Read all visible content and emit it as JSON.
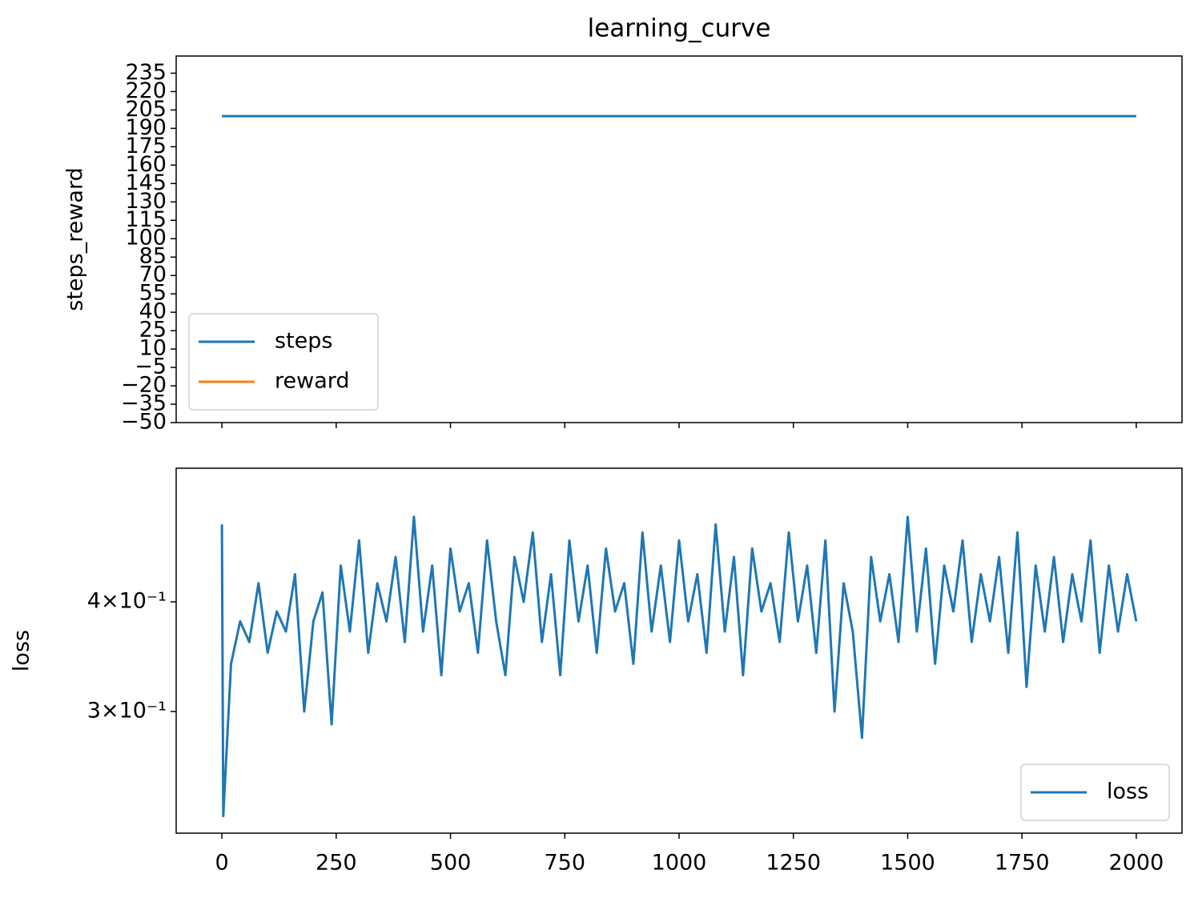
{
  "chart_data": [
    {
      "type": "line",
      "title": "learning_curve",
      "y_label": "steps_reward",
      "x": [
        0,
        2000
      ],
      "series": [
        {
          "name": "steps",
          "color": "#1f77b4",
          "values": [
            200,
            200
          ]
        },
        {
          "name": "reward",
          "color": "#ff7f0e",
          "values": [
            null,
            null
          ]
        }
      ],
      "xlim": [
        -100,
        2100
      ],
      "ylim": [
        -50,
        249
      ],
      "yticks": [
        {
          "value": -50,
          "label": "−50"
        },
        {
          "value": -35,
          "label": "−35"
        },
        {
          "value": -20,
          "label": "−20"
        },
        {
          "value": -5,
          "label": "−5"
        },
        10,
        25,
        40,
        55,
        70,
        85,
        100,
        115,
        130,
        145,
        160,
        175,
        190,
        205,
        220,
        235
      ],
      "legend": "lower left"
    },
    {
      "type": "line",
      "y_label": "loss",
      "yscale": "log",
      "x": [
        0,
        3,
        20,
        40,
        60,
        80,
        100,
        120,
        140,
        160,
        180,
        200,
        220,
        240,
        260,
        280,
        300,
        320,
        340,
        360,
        380,
        400,
        420,
        440,
        460,
        480,
        500,
        520,
        540,
        560,
        580,
        600,
        620,
        640,
        660,
        680,
        700,
        720,
        740,
        760,
        780,
        800,
        820,
        840,
        860,
        880,
        900,
        920,
        940,
        960,
        980,
        1000,
        1020,
        1040,
        1060,
        1080,
        1100,
        1120,
        1140,
        1160,
        1180,
        1200,
        1220,
        1240,
        1260,
        1280,
        1300,
        1320,
        1340,
        1360,
        1380,
        1400,
        1420,
        1440,
        1460,
        1480,
        1500,
        1520,
        1540,
        1560,
        1580,
        1600,
        1620,
        1640,
        1660,
        1680,
        1700,
        1720,
        1740,
        1760,
        1780,
        1800,
        1820,
        1840,
        1860,
        1880,
        1900,
        1920,
        1940,
        1960,
        1980,
        2000
      ],
      "series": [
        {
          "name": "loss",
          "color": "#1f77b4",
          "values": [
            0.49,
            0.228,
            0.34,
            0.38,
            0.36,
            0.42,
            0.35,
            0.39,
            0.37,
            0.43,
            0.3,
            0.38,
            0.41,
            0.29,
            0.44,
            0.37,
            0.47,
            0.35,
            0.42,
            0.38,
            0.45,
            0.36,
            0.5,
            0.37,
            0.44,
            0.33,
            0.46,
            0.39,
            0.42,
            0.35,
            0.47,
            0.38,
            0.33,
            0.45,
            0.4,
            0.48,
            0.36,
            0.43,
            0.33,
            0.47,
            0.38,
            0.44,
            0.35,
            0.46,
            0.39,
            0.42,
            0.34,
            0.48,
            0.37,
            0.44,
            0.36,
            0.47,
            0.38,
            0.43,
            0.35,
            0.49,
            0.37,
            0.45,
            0.33,
            0.46,
            0.39,
            0.42,
            0.36,
            0.48,
            0.38,
            0.44,
            0.35,
            0.47,
            0.3,
            0.42,
            0.37,
            0.28,
            0.45,
            0.38,
            0.43,
            0.36,
            0.5,
            0.37,
            0.46,
            0.34,
            0.44,
            0.39,
            0.47,
            0.36,
            0.43,
            0.38,
            0.45,
            0.35,
            0.48,
            0.32,
            0.44,
            0.37,
            0.45,
            0.36,
            0.43,
            0.38,
            0.47,
            0.35,
            0.44,
            0.37,
            0.43,
            0.38
          ]
        }
      ],
      "xlim": [
        -100,
        2100
      ],
      "ylim": [
        0.218,
        0.568
      ],
      "xticks": [
        0,
        250,
        500,
        750,
        1000,
        1250,
        1500,
        1750,
        2000
      ],
      "yticks": [
        {
          "value": 0.3,
          "label": "3×10⁻¹"
        },
        {
          "value": 0.4,
          "label": "4×10⁻¹"
        }
      ],
      "legend": "lower right"
    }
  ]
}
